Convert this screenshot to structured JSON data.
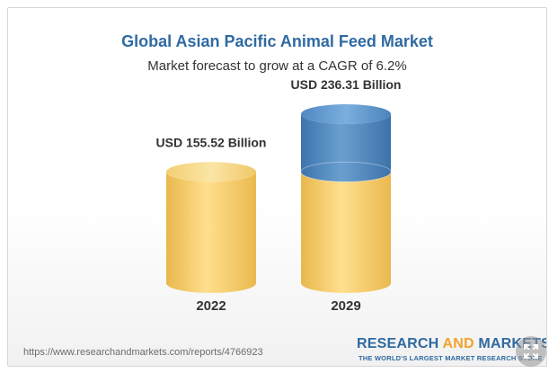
{
  "header": {
    "title": "Global Asian Pacific Animal Feed Market",
    "subtitle": "Market forecast to grow at a CAGR of 6.2%"
  },
  "chart_data": {
    "type": "bar",
    "title": "Global Asian Pacific Animal Feed Market",
    "subtitle": "Market forecast to grow at a CAGR of 6.2%",
    "categories": [
      "2022",
      "2029"
    ],
    "values": [
      155.52,
      236.31
    ],
    "value_labels": [
      "USD 155.52 Billion",
      "USD 236.31 Billion"
    ],
    "growth_segment": {
      "category": "2029",
      "base": 155.52,
      "top": 236.31
    },
    "colors": {
      "base": "#f4cc6a",
      "growth": "#4f86bc"
    },
    "xlabel": "",
    "ylabel": ""
  },
  "footer": {
    "url": "https://www.researchandmarkets.com/reports/4766923",
    "brand_part1": "RESEARCH ",
    "brand_part2": "AND",
    "brand_part3": " MARKETS",
    "tagline": "THE WORLD'S LARGEST MARKET RESEARCH STORE"
  },
  "controls": {
    "expand_icon": "expand-icon"
  }
}
